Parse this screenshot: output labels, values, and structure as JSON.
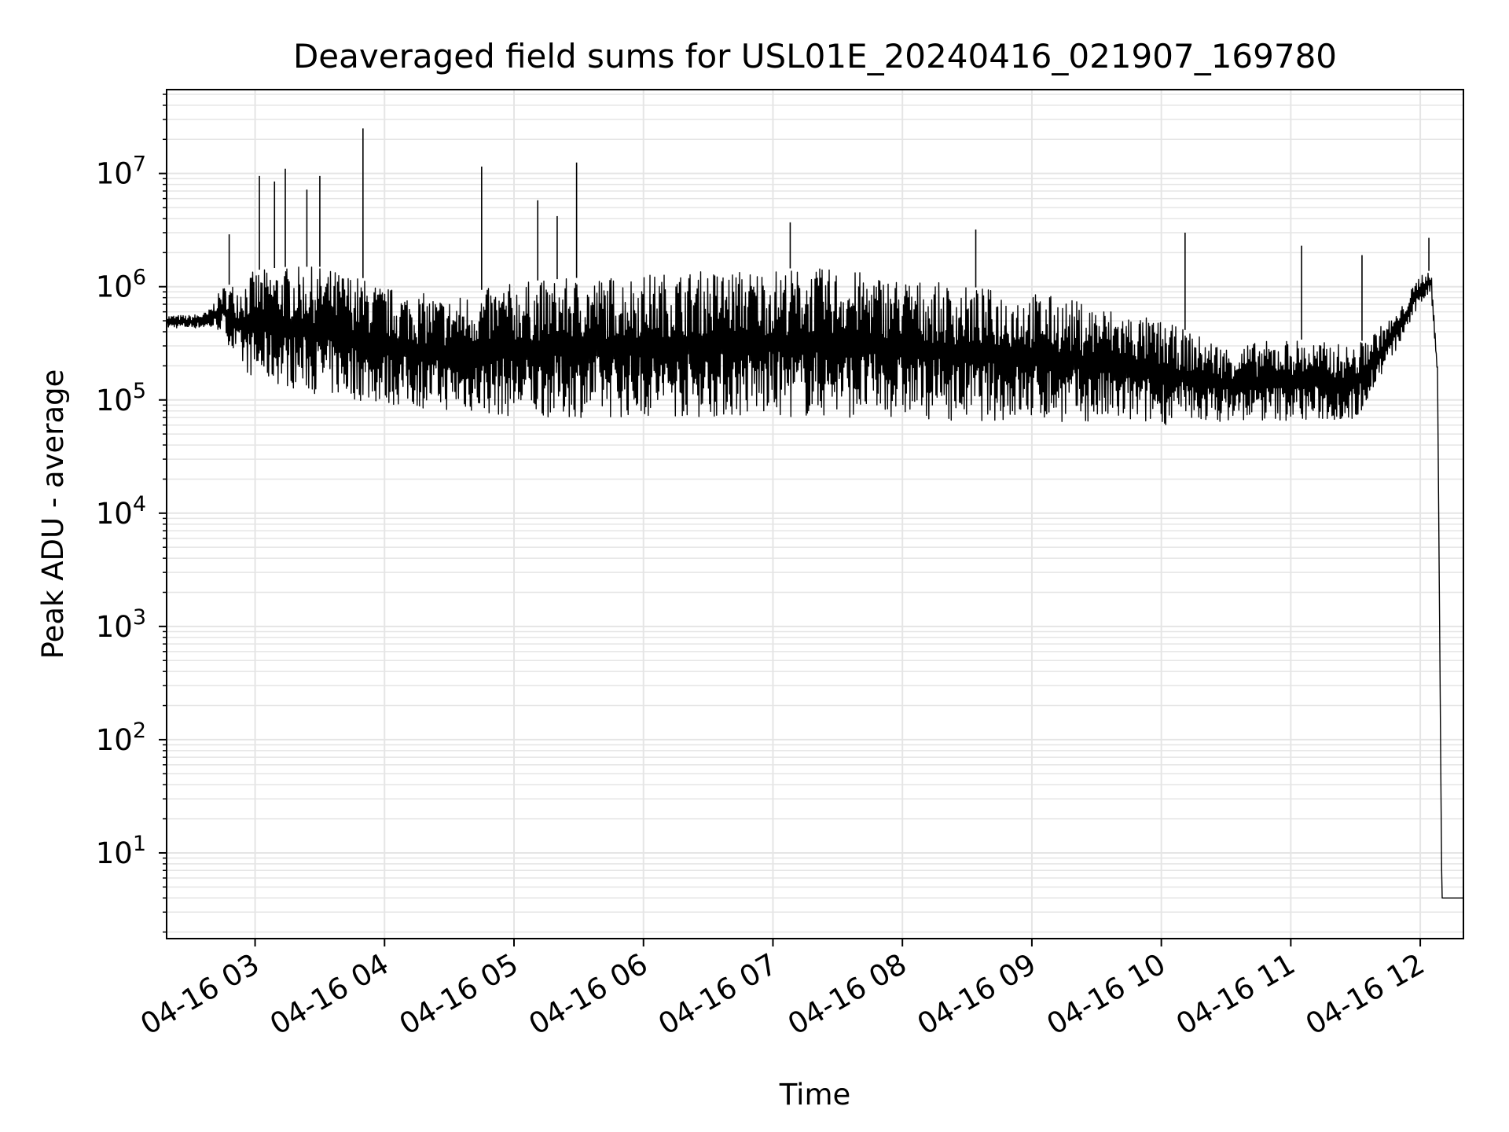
{
  "chart_data": {
    "type": "line",
    "title": "Deaveraged field sums for USL01E_20240416_021907_169780",
    "xlabel": "Time",
    "ylabel": "Peak ADU - average",
    "yscale": "log",
    "ylim": [
      1.75,
      55000000
    ],
    "xlim": [
      "2024-04-16 02:19",
      "2024-04-16 12:20"
    ],
    "grid": true,
    "line_color": "#000000",
    "grid_color": "#e5e5e5",
    "x_ticks": [
      {
        "value": "2024-04-16 03:00",
        "label": "04-16 03"
      },
      {
        "value": "2024-04-16 04:00",
        "label": "04-16 04"
      },
      {
        "value": "2024-04-16 05:00",
        "label": "04-16 05"
      },
      {
        "value": "2024-04-16 06:00",
        "label": "04-16 06"
      },
      {
        "value": "2024-04-16 07:00",
        "label": "04-16 07"
      },
      {
        "value": "2024-04-16 08:00",
        "label": "04-16 08"
      },
      {
        "value": "2024-04-16 09:00",
        "label": "04-16 09"
      },
      {
        "value": "2024-04-16 10:00",
        "label": "04-16 10"
      },
      {
        "value": "2024-04-16 11:00",
        "label": "04-16 11"
      },
      {
        "value": "2024-04-16 12:00",
        "label": "04-16 12"
      }
    ],
    "y_ticks": [
      {
        "value": 10,
        "base": "10",
        "exp": "1"
      },
      {
        "value": 100,
        "base": "10",
        "exp": "2"
      },
      {
        "value": 1000,
        "base": "10",
        "exp": "3"
      },
      {
        "value": 10000,
        "base": "10",
        "exp": "4"
      },
      {
        "value": 100000,
        "base": "10",
        "exp": "5"
      },
      {
        "value": 1000000,
        "base": "10",
        "exp": "6"
      },
      {
        "value": 10000000,
        "base": "10",
        "exp": "7"
      }
    ],
    "series": [
      {
        "x": [
          "2024-04-16 02:19",
          "2024-04-16 02:30",
          "2024-04-16 02:38",
          "2024-04-16 02:45",
          "2024-04-16 02:52",
          "2024-04-16 03:00",
          "2024-04-16 03:15",
          "2024-04-16 03:30",
          "2024-04-16 03:45",
          "2024-04-16 04:00",
          "2024-04-16 04:30",
          "2024-04-16 05:00",
          "2024-04-16 05:30",
          "2024-04-16 06:00",
          "2024-04-16 06:30",
          "2024-04-16 07:00",
          "2024-04-16 07:30",
          "2024-04-16 08:00",
          "2024-04-16 08:30",
          "2024-04-16 09:00",
          "2024-04-16 09:30",
          "2024-04-16 10:00",
          "2024-04-16 10:30",
          "2024-04-16 11:00",
          "2024-04-16 11:30",
          "2024-04-16 11:50",
          "2024-04-16 12:00",
          "2024-04-16 12:05",
          "2024-04-16 12:08",
          "2024-04-16 12:10",
          "2024-04-16 12:12",
          "2024-04-16 12:20"
        ],
        "y_upper": [
          560000,
          560000,
          600000,
          1000000,
          1100000,
          1400000,
          1500000,
          1500000,
          1300000,
          1000000,
          800000,
          1100000,
          1200000,
          1300000,
          1400000,
          1450000,
          1450000,
          1200000,
          1000000,
          900000,
          700000,
          500000,
          300000,
          350000,
          300000,
          600000,
          1300000,
          1400000,
          200000,
          4,
          4,
          4
        ],
        "y_lower": [
          430000,
          430000,
          430000,
          400000,
          200000,
          150000,
          130000,
          110000,
          100000,
          90000,
          80000,
          70000,
          70000,
          70000,
          70000,
          70000,
          70000,
          70000,
          65000,
          65000,
          62000,
          60000,
          65000,
          65000,
          65000,
          300000,
          700000,
          900000,
          150000,
          4,
          4,
          4
        ],
        "spikes": [
          {
            "x": "2024-04-16 02:48",
            "y": 2900000
          },
          {
            "x": "2024-04-16 03:02",
            "y": 9500000
          },
          {
            "x": "2024-04-16 03:09",
            "y": 8500000
          },
          {
            "x": "2024-04-16 03:14",
            "y": 11000000
          },
          {
            "x": "2024-04-16 03:24",
            "y": 7200000
          },
          {
            "x": "2024-04-16 03:30",
            "y": 9500000
          },
          {
            "x": "2024-04-16 03:50",
            "y": 25000000
          },
          {
            "x": "2024-04-16 04:45",
            "y": 11500000
          },
          {
            "x": "2024-04-16 05:11",
            "y": 5800000
          },
          {
            "x": "2024-04-16 05:20",
            "y": 4200000
          },
          {
            "x": "2024-04-16 05:29",
            "y": 12500000
          },
          {
            "x": "2024-04-16 07:08",
            "y": 3700000
          },
          {
            "x": "2024-04-16 08:34",
            "y": 3200000
          },
          {
            "x": "2024-04-16 10:11",
            "y": 3000000
          },
          {
            "x": "2024-04-16 11:05",
            "y": 2300000
          },
          {
            "x": "2024-04-16 11:33",
            "y": 1900000
          },
          {
            "x": "2024-04-16 12:04",
            "y": 2700000
          }
        ]
      }
    ]
  }
}
